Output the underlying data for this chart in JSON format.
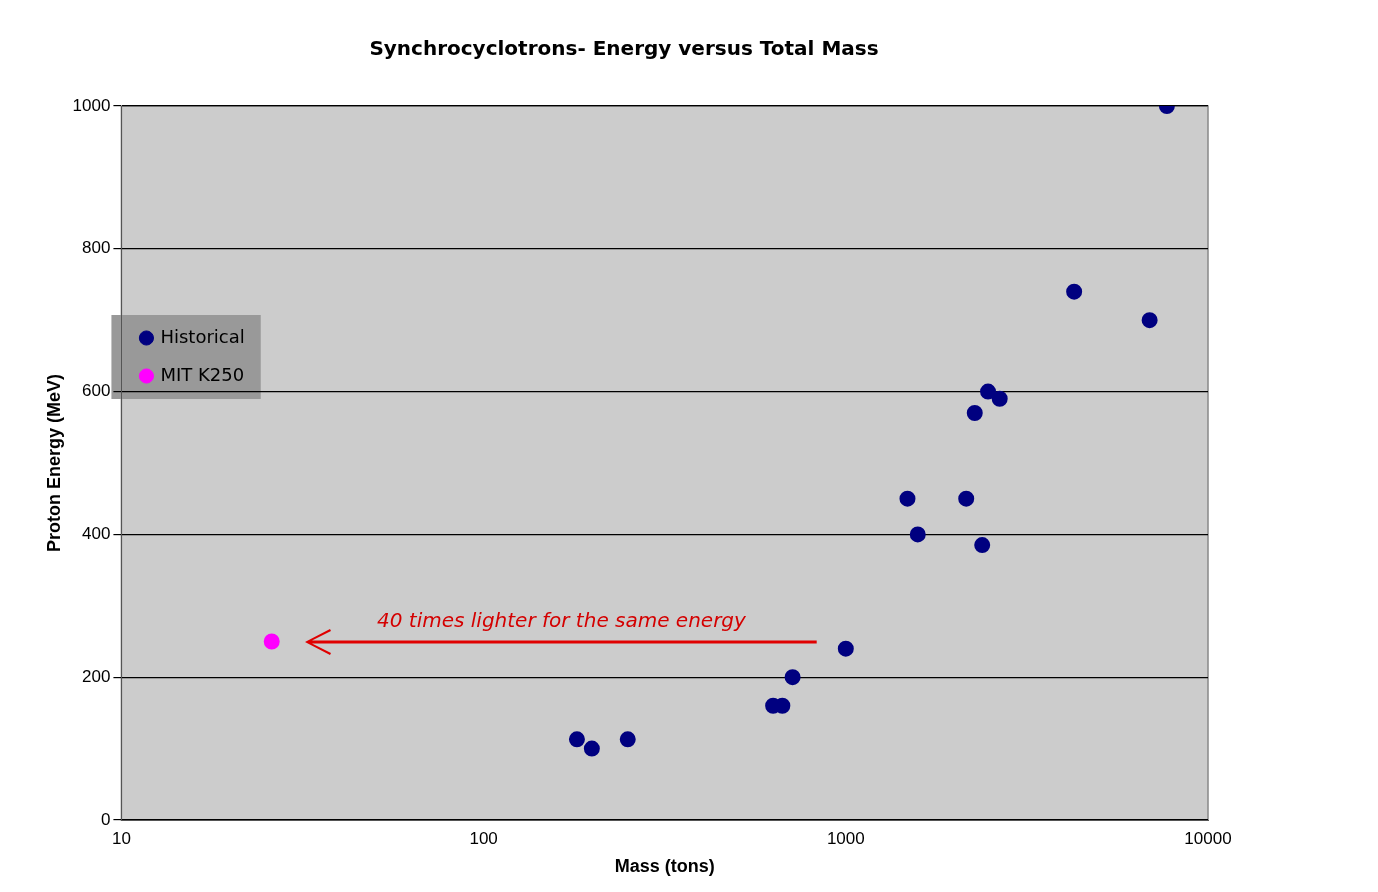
{
  "chart_data": {
    "type": "scatter",
    "title": "Synchrocyclotrons- Energy versus Total Mass",
    "xlabel": "Mass (tons)",
    "ylabel": "Proton Energy (MeV)",
    "log": "x",
    "xlim": [
      10,
      10000
    ],
    "xticks": [
      10,
      100,
      1000,
      10000
    ],
    "ylim": [
      0,
      1000
    ],
    "yticks": [
      0,
      200,
      400,
      600,
      800,
      1000
    ],
    "grid": "y",
    "legend": "left",
    "marker": "circle",
    "annotations": [
      "40 times lighter for the same energy"
    ],
    "series": [
      {
        "name": "Historical",
        "color": "#000080",
        "x": [
          7700,
          4270,
          6900,
          2470,
          2660,
          2270,
          1480,
          2150,
          1580,
          2380,
          1000,
          713,
          630,
          668,
          181,
          199,
          250
        ],
        "values": [
          1000,
          740,
          700,
          600,
          590,
          570,
          450,
          450,
          400,
          385,
          240,
          200,
          160,
          160,
          113,
          100,
          113
        ]
      },
      {
        "name": "MIT K250",
        "color": "#ff00ff",
        "x": [
          26
        ],
        "values": [
          250
        ]
      }
    ]
  }
}
